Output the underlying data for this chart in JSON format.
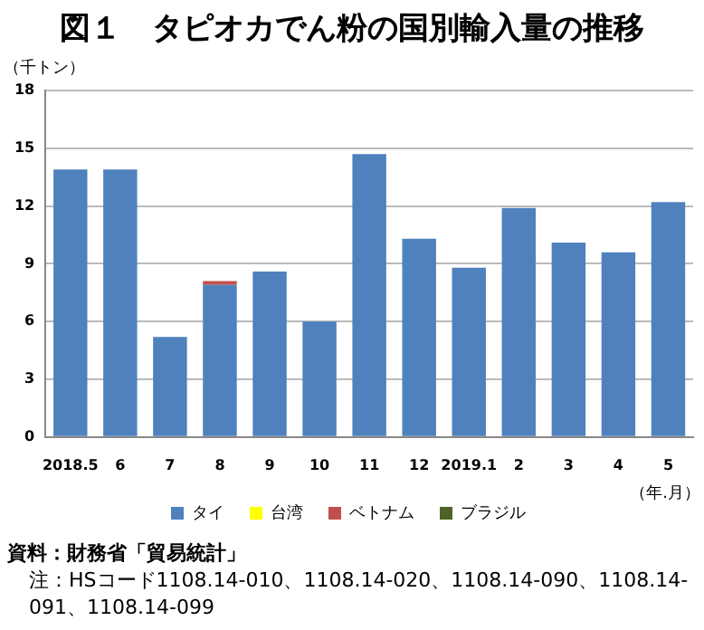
{
  "chart_data": {
    "type": "bar",
    "title": "図１　タピオカでん粉の国別輸入量の推移",
    "ylabel": "（千トン）",
    "xlabel": "（年.月）",
    "categories": [
      "2018.5",
      "6",
      "7",
      "8",
      "9",
      "10",
      "11",
      "12",
      "2019.1",
      "2",
      "3",
      "4",
      "5"
    ],
    "series": [
      {
        "name": "タイ",
        "color": "#4f81bd",
        "values": [
          13.9,
          13.9,
          5.2,
          7.9,
          8.6,
          6.0,
          14.7,
          10.3,
          8.8,
          11.9,
          10.1,
          9.6,
          12.2
        ]
      },
      {
        "name": "台湾",
        "color": "#ffff00",
        "values": [
          0,
          0,
          0,
          0,
          0,
          0,
          0,
          0,
          0,
          0,
          0,
          0,
          0
        ]
      },
      {
        "name": "ベトナム",
        "color": "#c0504d",
        "values": [
          0,
          0,
          0,
          0.2,
          0,
          0,
          0,
          0,
          0,
          0,
          0,
          0,
          0
        ]
      },
      {
        "name": "ブラジル",
        "color": "#4f6228",
        "values": [
          0,
          0,
          0,
          0,
          0,
          0,
          0,
          0,
          0,
          0,
          0,
          0,
          0
        ]
      }
    ],
    "stacked": true,
    "ylim": [
      0,
      18
    ],
    "yticks": [
      0,
      3,
      6,
      9,
      12,
      15,
      18
    ],
    "grid": "y",
    "legend": "bottom",
    "annotations": [
      "資料：財務省「貿易統計」",
      "注：HSコード1108.14-010、1108.14-020、1108.14-090、1108.14-091、1108.14-099"
    ]
  }
}
